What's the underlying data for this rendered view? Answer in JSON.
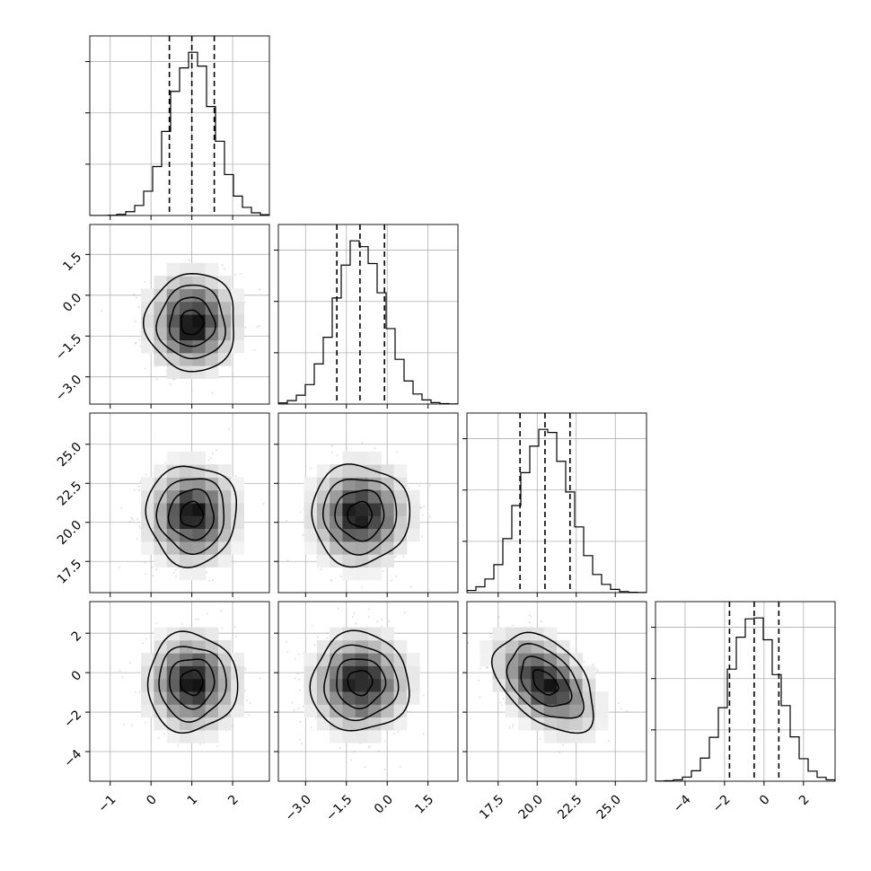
{
  "chart_data": {
    "type": "corner",
    "parameters": [
      {
        "mean": 1.0,
        "sd": 0.55,
        "range": [
          -1.5,
          2.9
        ],
        "quantiles": [
          0.45,
          1.0,
          1.55
        ],
        "ticks": [
          -1,
          0,
          1,
          2
        ],
        "tick_labels": [
          "−1",
          "0",
          "1",
          "2"
        ]
      },
      {
        "mean": -1.0,
        "sd": 0.9,
        "range": [
          -4.0,
          2.6
        ],
        "quantiles": [
          -1.85,
          -1.0,
          -0.1
        ],
        "ticks": [
          -3.0,
          -1.5,
          0.0,
          1.5
        ],
        "tick_labels": [
          "−3.0",
          "−1.5",
          "0.0",
          "1.5"
        ]
      },
      {
        "mean": 20.5,
        "sd": 1.6,
        "range": [
          15.5,
          27.0
        ],
        "quantiles": [
          18.9,
          20.5,
          22.1
        ],
        "ticks": [
          17.5,
          20.0,
          22.5,
          25.0
        ],
        "tick_labels": [
          "17.5",
          "20.0",
          "22.5",
          "25.0"
        ]
      },
      {
        "mean": -0.5,
        "sd": 1.25,
        "range": [
          -5.5,
          3.6
        ],
        "quantiles": [
          -1.75,
          -0.5,
          0.75
        ],
        "ticks": [
          -4,
          -2,
          0,
          2
        ],
        "tick_labels": [
          "−4",
          "−2",
          "0",
          "2"
        ]
      }
    ],
    "correlations": {
      "0-1": 0.0,
      "0-2": 0.0,
      "1-2": 0.0,
      "0-3": 0.0,
      "1-3": 0.0,
      "2-3": -0.45
    },
    "diagonal": {
      "type": "histogram_step",
      "bins": 20,
      "quantile_lines": "dashed",
      "grid": true
    },
    "off_diagonal": {
      "type": "2d_density_with_scatter_and_contours",
      "contour_levels": 4,
      "grid": true
    }
  }
}
